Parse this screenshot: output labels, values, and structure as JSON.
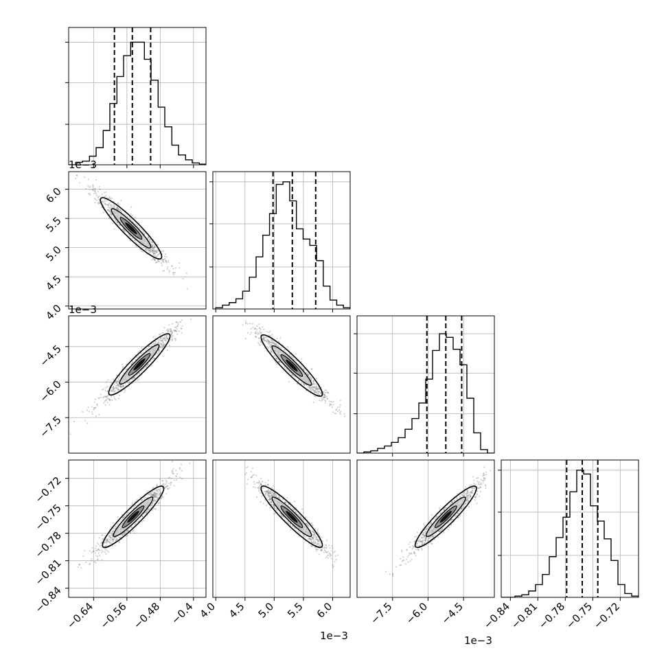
{
  "chart_data": {
    "type": "corner",
    "parameters": 4,
    "panels": [
      {
        "kind": "hist",
        "row": 0,
        "col": 0,
        "x_range": [
          -0.7,
          -0.37
        ],
        "x_ticks": [
          -0.64,
          -0.56,
          -0.48,
          -0.4
        ],
        "y_max": 1.12,
        "y_ticks": [
          0.33,
          0.67,
          1.0
        ],
        "bin_edges": [
          -0.7,
          -0.683,
          -0.667,
          -0.65,
          -0.634,
          -0.617,
          -0.601,
          -0.584,
          -0.568,
          -0.551,
          -0.535,
          -0.518,
          -0.502,
          -0.485,
          -0.469,
          -0.452,
          -0.436,
          -0.419,
          -0.403,
          -0.386,
          -0.37
        ],
        "counts": [
          0.0,
          0.02,
          0.03,
          0.07,
          0.14,
          0.28,
          0.5,
          0.72,
          0.89,
          1.0,
          1.0,
          0.86,
          0.69,
          0.47,
          0.31,
          0.16,
          0.08,
          0.04,
          0.015,
          0.005
        ],
        "quantiles": [
          -0.59,
          -0.547,
          -0.503
        ]
      },
      {
        "kind": "hist",
        "row": 1,
        "col": 1,
        "x_range": [
          3.95,
          6.3
        ],
        "x_ticks": [
          4.0,
          4.5,
          5.0,
          5.5,
          6.0
        ],
        "y_max": 1.08,
        "y_ticks": [
          0.33,
          0.67,
          1.0
        ],
        "bin_edges": [
          4.0,
          4.115,
          4.23,
          4.345,
          4.46,
          4.575,
          4.69,
          4.805,
          4.92,
          5.035,
          5.15,
          5.265,
          5.38,
          5.495,
          5.61,
          5.725,
          5.84,
          5.955,
          6.07,
          6.185,
          6.3
        ],
        "counts": [
          0.01,
          0.03,
          0.05,
          0.08,
          0.14,
          0.25,
          0.41,
          0.58,
          0.75,
          0.98,
          1.0,
          0.85,
          0.63,
          0.55,
          0.5,
          0.38,
          0.18,
          0.07,
          0.03,
          0.01
        ],
        "quantiles": [
          4.98,
          5.31,
          5.71
        ]
      },
      {
        "kind": "hist",
        "row": 2,
        "col": 2,
        "x_range": [
          -9.0,
          -3.2
        ],
        "x_ticks": [
          -7.5,
          -6.0,
          -4.5
        ],
        "y_max": 1.15,
        "y_ticks": [
          0.33,
          0.67,
          1.0
        ],
        "bin_edges": [
          -9.0,
          -8.71,
          -8.42,
          -8.13,
          -7.84,
          -7.55,
          -7.26,
          -6.97,
          -6.68,
          -6.39,
          -6.1,
          -5.81,
          -5.52,
          -5.23,
          -4.94,
          -4.65,
          -4.36,
          -4.07,
          -3.78,
          -3.49,
          -3.2
        ],
        "counts": [
          0.0,
          0.01,
          0.02,
          0.04,
          0.06,
          0.09,
          0.13,
          0.2,
          0.29,
          0.42,
          0.62,
          0.86,
          1.0,
          0.97,
          0.87,
          0.74,
          0.46,
          0.17,
          0.03,
          0.0
        ],
        "quantiles": [
          -6.05,
          -5.25,
          -4.58
        ]
      },
      {
        "kind": "hist",
        "row": 3,
        "col": 3,
        "x_range": [
          -0.85,
          -0.7
        ],
        "x_ticks": [
          -0.84,
          -0.81,
          -0.78,
          -0.75,
          -0.72
        ],
        "y_max": 1.08,
        "y_ticks": [
          0.33,
          0.67,
          1.0
        ],
        "bin_edges": [
          -0.85,
          -0.8425,
          -0.835,
          -0.8275,
          -0.82,
          -0.8125,
          -0.805,
          -0.7975,
          -0.79,
          -0.7825,
          -0.775,
          -0.7675,
          -0.76,
          -0.7525,
          -0.745,
          -0.7375,
          -0.73,
          -0.7225,
          -0.715,
          -0.7075,
          -0.7
        ],
        "counts": [
          0.0,
          0.0,
          0.01,
          0.02,
          0.05,
          0.1,
          0.18,
          0.32,
          0.47,
          0.63,
          0.83,
          1.0,
          0.97,
          0.72,
          0.6,
          0.46,
          0.29,
          0.1,
          0.03,
          0.01
        ],
        "quantiles": [
          -0.7785,
          -0.7615,
          -0.7445
        ]
      },
      {
        "kind": "scatter",
        "row": 1,
        "col": 0,
        "x_range": [
          -0.7,
          -0.37
        ],
        "y_range": [
          3.95,
          6.3
        ],
        "x_ticks": [],
        "y_ticks": [
          4.0,
          4.5,
          5.0,
          5.5,
          6.0
        ],
        "centroid": [
          -0.55,
          5.33
        ],
        "direction": [
          1,
          -1
        ]
      },
      {
        "kind": "scatter",
        "row": 2,
        "col": 0,
        "x_range": [
          -0.7,
          -0.37
        ],
        "y_range": [
          -9.0,
          -3.2
        ],
        "x_ticks": [],
        "y_ticks": [
          -7.5,
          -6.0,
          -4.5
        ],
        "centroid": [
          -0.53,
          -5.25
        ],
        "direction": [
          1,
          1
        ]
      },
      {
        "kind": "scatter",
        "row": 2,
        "col": 1,
        "x_range": [
          3.95,
          6.3
        ],
        "y_range": [
          -9.0,
          -3.2
        ],
        "x_ticks": [],
        "y_ticks": [],
        "centroid": [
          5.3,
          -5.3
        ],
        "direction": [
          1,
          -1
        ]
      },
      {
        "kind": "scatter",
        "row": 3,
        "col": 0,
        "x_range": [
          -0.7,
          -0.37
        ],
        "y_range": [
          -0.85,
          -0.7
        ],
        "x_ticks": [
          -0.64,
          -0.56,
          -0.48,
          -0.4
        ],
        "y_ticks": [
          -0.84,
          -0.81,
          -0.78,
          -0.75,
          -0.72
        ],
        "centroid": [
          -0.545,
          -0.762
        ],
        "direction": [
          1,
          1
        ]
      },
      {
        "kind": "scatter",
        "row": 3,
        "col": 1,
        "x_range": [
          3.95,
          6.3
        ],
        "y_range": [
          -0.85,
          -0.7
        ],
        "x_ticks": [
          4.0,
          4.5,
          5.0,
          5.5,
          6.0
        ],
        "y_ticks": [],
        "centroid": [
          5.3,
          -0.762
        ],
        "direction": [
          1,
          -1
        ]
      },
      {
        "kind": "scatter",
        "row": 3,
        "col": 2,
        "x_range": [
          -9.0,
          -3.2
        ],
        "y_range": [
          -0.85,
          -0.7
        ],
        "x_ticks": [
          -7.5,
          -6.0,
          -4.5
        ],
        "y_ticks": [],
        "centroid": [
          -5.25,
          -0.762
        ],
        "direction": [
          1,
          1
        ]
      }
    ],
    "offset_labels": [
      "1e−3",
      "1e−3",
      "1e−3",
      "1e−3"
    ],
    "colors": {
      "ink": "#000000",
      "points": "#7a7a7a",
      "grid": "#b0b0b0",
      "quantile_line": "#000000"
    },
    "grid": true,
    "quantile_line_style": "dashed"
  }
}
